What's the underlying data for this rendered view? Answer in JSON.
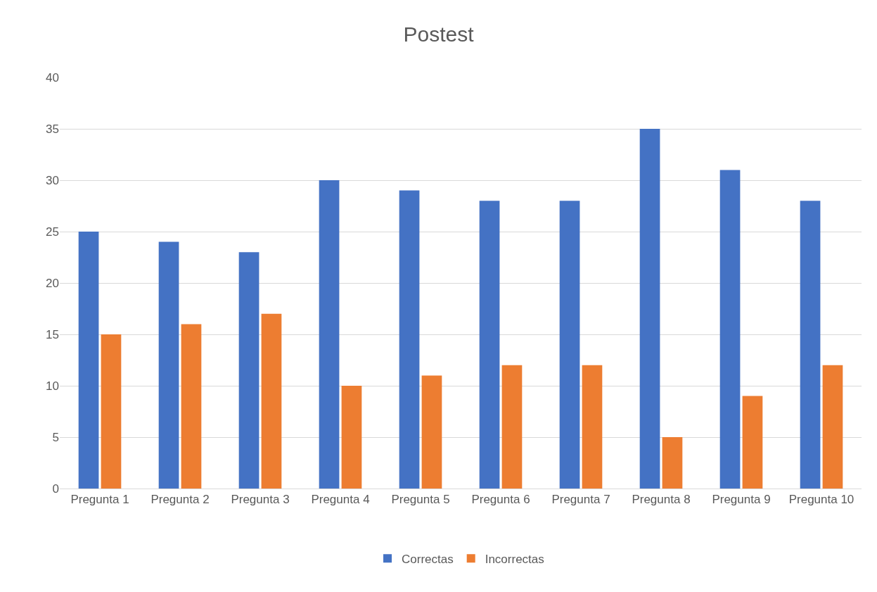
{
  "chart_data": {
    "type": "bar",
    "title": "Postest",
    "categories": [
      "Pregunta 1",
      "Pregunta 2",
      "Pregunta 3",
      "Pregunta 4",
      "Pregunta 5",
      "Pregunta 6",
      "Pregunta 7",
      "Pregunta 8",
      "Pregunta 9",
      "Pregunta 10"
    ],
    "series": [
      {
        "name": "Correctas",
        "color": "#4472c4",
        "values": [
          25,
          24,
          23,
          30,
          29,
          28,
          28,
          35,
          31,
          28
        ]
      },
      {
        "name": "Incorrectas",
        "color": "#ed7d31",
        "values": [
          15,
          16,
          17,
          10,
          11,
          12,
          12,
          5,
          9,
          12
        ]
      }
    ],
    "ylim": [
      0,
      40
    ],
    "yticks": [
      0,
      5,
      10,
      15,
      20,
      25,
      30,
      35,
      40
    ],
    "grid": "y",
    "legend": "bottom"
  }
}
